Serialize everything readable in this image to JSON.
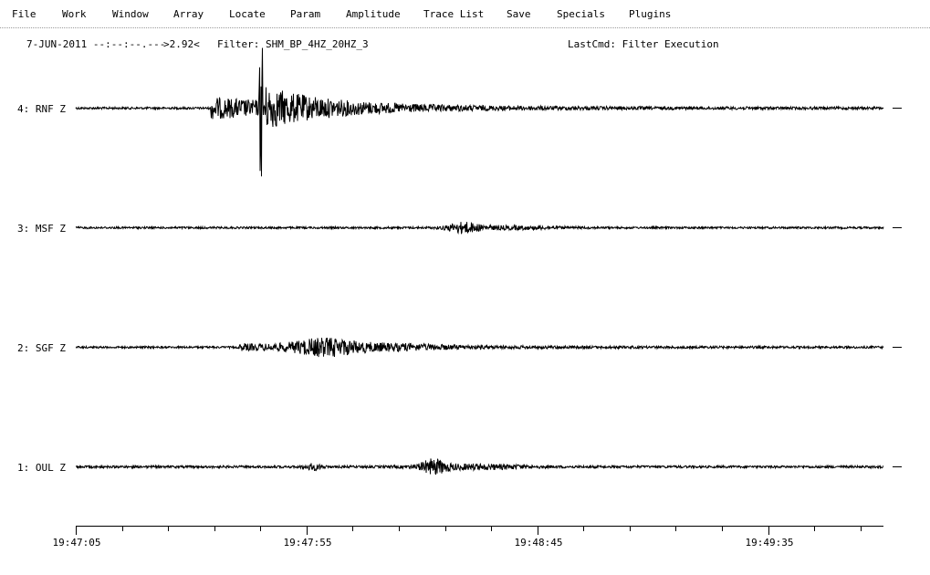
{
  "menu": {
    "items": [
      "File",
      "Work",
      "Window",
      "Array",
      "Locate",
      "Param",
      "Amplitude",
      "Trace List",
      "Save",
      "Specials",
      "Plugins"
    ]
  },
  "status": {
    "date_time": "7-JUN-2011 --:--:--.---",
    "value": ">2.92<",
    "filter": "Filter: SHM_BP_4HZ_20HZ_3",
    "last_cmd": "LastCmd: Filter Execution"
  },
  "traces": [
    {
      "label": "4: RNF Z",
      "station": "RNF",
      "component": "Z"
    },
    {
      "label": "3: MSF Z",
      "station": "MSF",
      "component": "Z"
    },
    {
      "label": "2: SGF Z",
      "station": "SGF",
      "component": "Z"
    },
    {
      "label": "1: OUL Z",
      "station": "OUL",
      "component": "Z"
    }
  ],
  "time_axis": {
    "labels": [
      "19:47:05",
      "19:47:55",
      "19:48:45",
      "19:49:35"
    ],
    "start_seconds": 0,
    "end_seconds": 175,
    "major_tick_step_seconds": 10,
    "label_step_seconds": 50
  },
  "colors": {
    "background": "#ffffff",
    "trace": "#000000",
    "separator": "#9a9a9a"
  }
}
